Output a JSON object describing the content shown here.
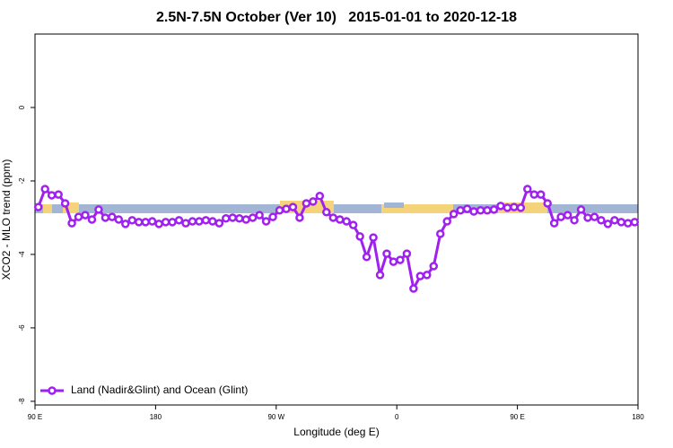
{
  "chart_data": {
    "type": "line",
    "title": "2.5N-7.5N October (Ver 10)   2015-01-01 to 2020-12-18",
    "x_label": "Longitude (deg E)",
    "y_label": "XCO2 - MLO trend (ppm)",
    "xlim": [
      90,
      540
    ],
    "ylim": [
      -8.1,
      2
    ],
    "xticks": [
      {
        "value": 90,
        "label": "90 E"
      },
      {
        "value": 180,
        "label": "180"
      },
      {
        "value": 270,
        "label": "90 W"
      },
      {
        "value": 360,
        "label": "0"
      },
      {
        "value": 450,
        "label": "90 E"
      },
      {
        "value": 540,
        "label": "180"
      }
    ],
    "yticks": [
      0,
      -2,
      -4,
      -6,
      -8
    ],
    "legend": "bottom-left",
    "x": [
      92.5,
      97.5,
      102.5,
      107.5,
      112.5,
      117.5,
      122.5,
      127.5,
      132.5,
      137.5,
      142.5,
      147.5,
      152.5,
      157.5,
      162.5,
      167.5,
      172.5,
      177.5,
      182.5,
      187.5,
      192.5,
      197.5,
      202.5,
      207.5,
      212.5,
      217.5,
      222.5,
      227.5,
      232.5,
      237.5,
      242.5,
      247.5,
      252.5,
      257.5,
      262.5,
      267.5,
      272.5,
      277.5,
      282.5,
      287.5,
      292.5,
      297.5,
      302.5,
      307.5,
      312.5,
      317.5,
      322.5,
      327.5,
      332.5,
      337.5,
      342.5,
      347.5,
      352.5,
      357.5,
      362.5,
      367.5,
      372.5,
      377.5,
      382.5,
      387.5,
      392.5,
      397.5,
      402.5,
      407.5,
      412.5,
      417.5,
      422.5,
      427.5,
      432.5,
      437.5,
      442.5,
      447.5,
      452.5,
      457.5,
      462.5,
      467.5,
      472.5,
      477.5,
      482.5,
      487.5,
      492.5,
      497.5,
      502.5,
      507.5,
      512.5,
      517.5,
      522.5,
      527.5,
      532.5,
      537.5
    ],
    "series": [
      {
        "name": "Land (Nadir&Glint) and Ocean (Glint)",
        "color": "#a020f0",
        "values": [
          -2.71,
          -2.22,
          -2.39,
          -2.37,
          -2.61,
          -3.15,
          -2.98,
          -2.93,
          -3.05,
          -2.78,
          -3.0,
          -2.98,
          -3.05,
          -3.17,
          -3.07,
          -3.12,
          -3.12,
          -3.1,
          -3.17,
          -3.12,
          -3.12,
          -3.07,
          -3.15,
          -3.1,
          -3.1,
          -3.07,
          -3.1,
          -3.15,
          -3.02,
          -3.0,
          -3.02,
          -3.05,
          -3.0,
          -2.93,
          -3.1,
          -2.98,
          -2.8,
          -2.76,
          -2.71,
          -3.0,
          -2.61,
          -2.56,
          -2.41,
          -2.85,
          -3.0,
          -3.05,
          -3.1,
          -3.2,
          -3.51,
          -4.07,
          -3.54,
          -4.56,
          -3.98,
          -4.2,
          -4.15,
          -3.98,
          -4.93,
          -4.59,
          -4.56,
          -4.32,
          -3.44,
          -3.1,
          -2.9,
          -2.8,
          -2.76,
          -2.83,
          -2.8,
          -2.8,
          -2.78,
          -2.68,
          -2.73,
          -2.71,
          -2.73,
          -2.22,
          -2.37,
          -2.37,
          -2.61,
          -3.15,
          -2.98,
          -2.93,
          -3.07,
          -2.78,
          -3.0,
          -2.98,
          -3.07,
          -3.17,
          -3.07,
          -3.12,
          -3.15,
          -3.12
        ]
      }
    ]
  }
}
